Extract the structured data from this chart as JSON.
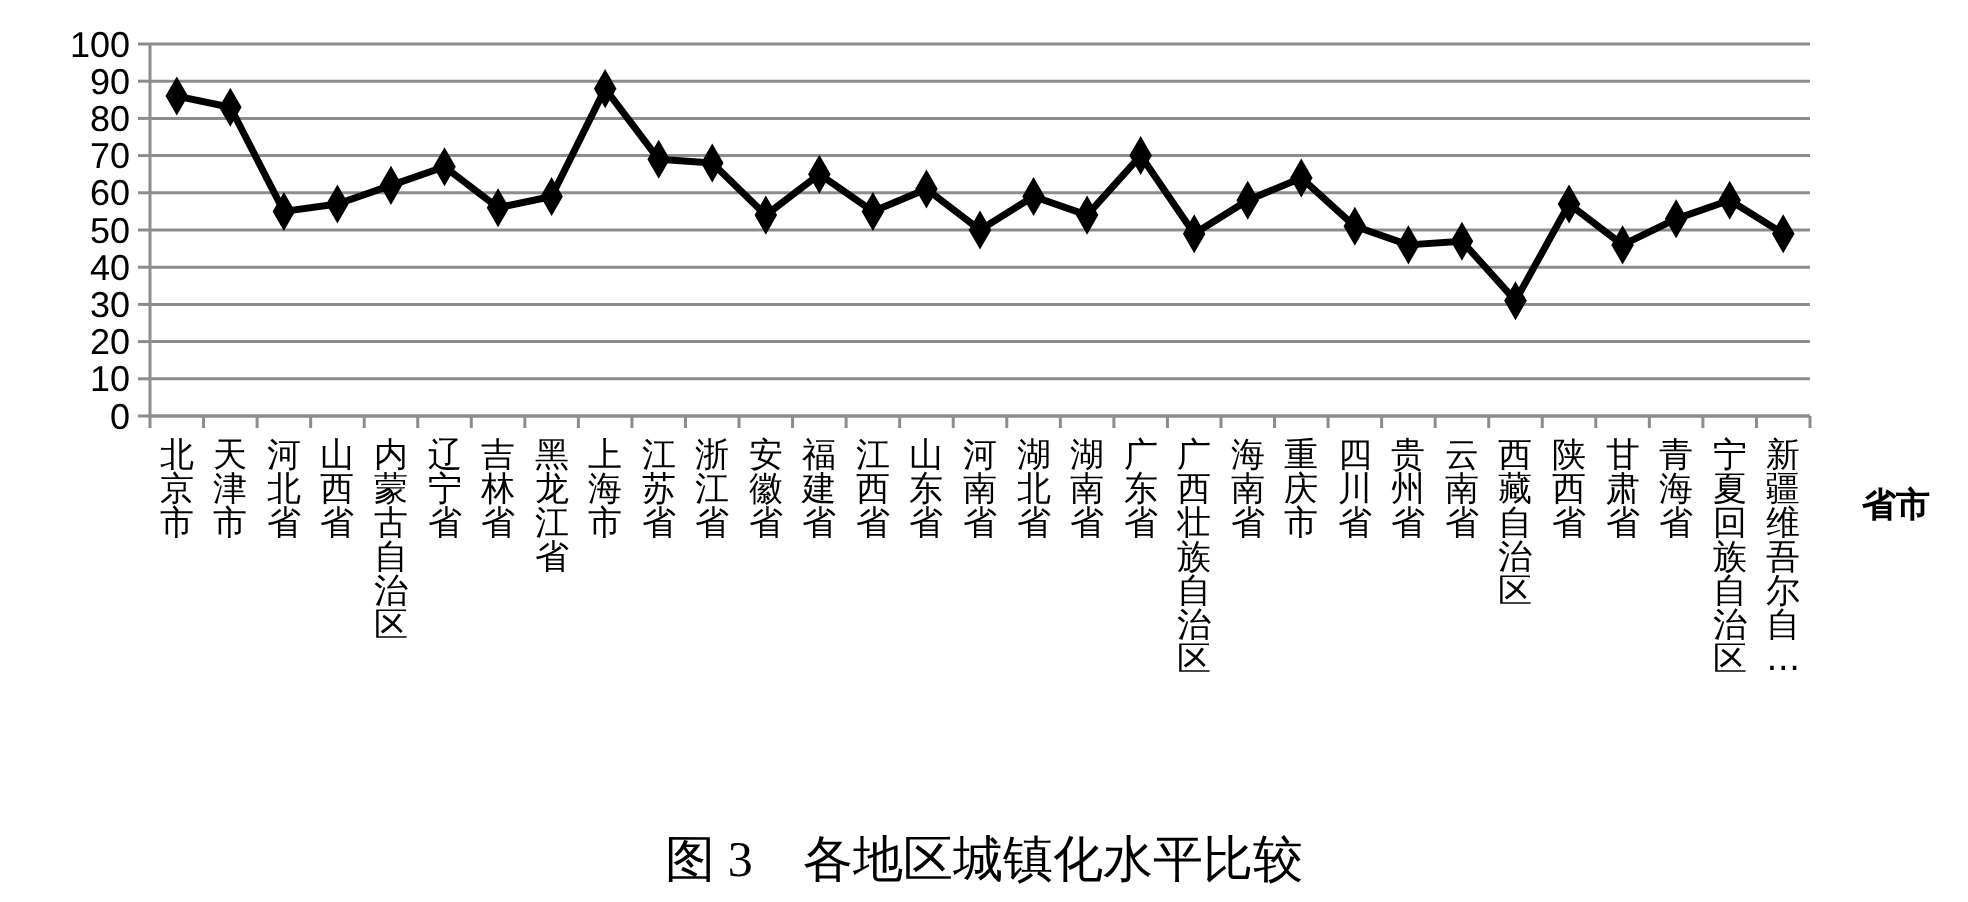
{
  "chart_data": {
    "type": "line",
    "title": "图 3　各地区城镇化水平比较",
    "xlabel": "省市",
    "categories": [
      "北京市",
      "天津市",
      "河北省",
      "山西省",
      "内蒙古自治区",
      "辽宁省",
      "吉林省",
      "黑龙江省",
      "上海市",
      "江苏省",
      "浙江省",
      "安徽省",
      "福建省",
      "江西省",
      "山东省",
      "河南省",
      "湖北省",
      "湖南省",
      "广东省",
      "广西壮族自治区",
      "海南省",
      "重庆市",
      "四川省",
      "贵州省",
      "云南省",
      "西藏自治区",
      "陕西省",
      "甘肃省",
      "青海省",
      "宁夏回族自治区",
      "新疆维吾尔自…"
    ],
    "series": [
      {
        "color": "#000000",
        "values": [
          86,
          83,
          55,
          57,
          62,
          67,
          56,
          59,
          88,
          69,
          68,
          54,
          65,
          55,
          61,
          50,
          59,
          54,
          70,
          49,
          58,
          64,
          51,
          46,
          47,
          31,
          57,
          46,
          53,
          58,
          49
        ]
      }
    ],
    "ylim": [
      0,
      100
    ],
    "yticks": [
      0,
      10,
      20,
      30,
      40,
      50,
      60,
      70,
      80,
      90,
      100
    ],
    "grid": "y",
    "marker": "diamond",
    "line_style": "solid"
  }
}
